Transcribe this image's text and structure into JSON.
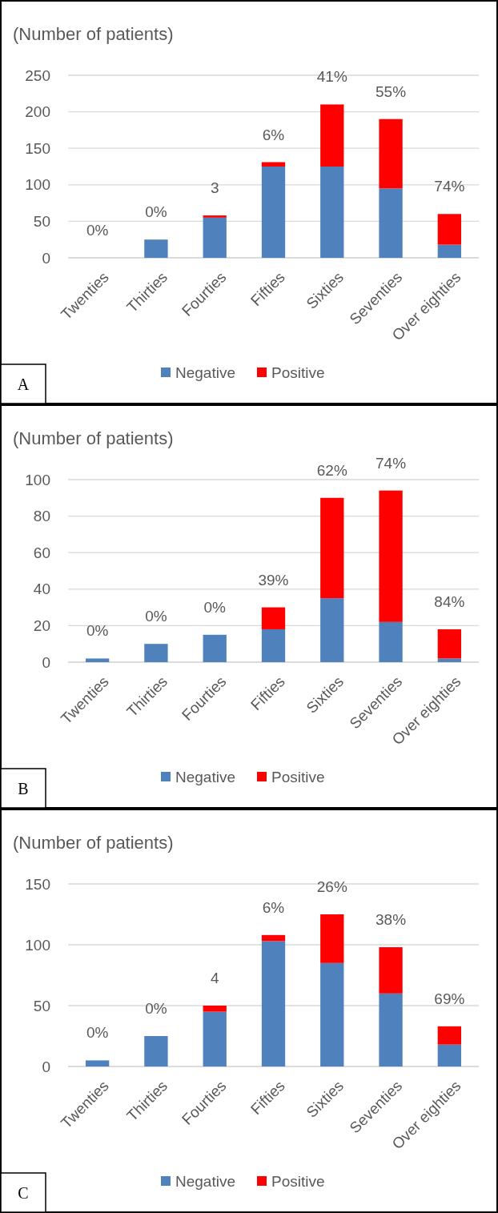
{
  "chart_data": [
    {
      "type": "bar",
      "stacked": true,
      "ylabel": "(Number of patients)",
      "categories": [
        "Twenties",
        "Thirties",
        "Fourties",
        "Fifties",
        "Sixties",
        "Seventies",
        "Over eighties"
      ],
      "ylim": [
        0,
        250
      ],
      "yticks": [
        0,
        50,
        100,
        150,
        200,
        250
      ],
      "grid": "y",
      "legend": "bottom",
      "annotations": [
        "A",
        {
          "text": "0%",
          "x": "Twenties",
          "y": 0
        },
        {
          "text": "0%",
          "x": "Thirties",
          "y": 25
        },
        {
          "text": "3",
          "x": "Fourties",
          "y": 58
        },
        {
          "text": "6%",
          "x": "Fifties",
          "y": 131
        },
        {
          "text": "41%",
          "x": "Sixties",
          "y": 210
        },
        {
          "text": "55%",
          "x": "Seventies",
          "y": 190
        },
        {
          "text": "74%",
          "x": "Over eighties",
          "y": 60
        }
      ],
      "series": [
        {
          "name": "Negative",
          "color": "#4f81bd",
          "values": [
            0,
            25,
            55,
            125,
            125,
            95,
            18
          ]
        },
        {
          "name": "Positive",
          "color": "#ff0000",
          "values": [
            0,
            0,
            3,
            6,
            85,
            95,
            42
          ]
        }
      ]
    },
    {
      "type": "bar",
      "stacked": true,
      "ylabel": "(Number of patients)",
      "categories": [
        "Twenties",
        "Thirties",
        "Fourties",
        "Fifties",
        "Sixties",
        "Seventies",
        "Over eighties"
      ],
      "ylim": [
        0,
        100
      ],
      "yticks": [
        0,
        20,
        40,
        60,
        80,
        100
      ],
      "grid": "y",
      "legend": "bottom",
      "annotations": [
        "B",
        {
          "text": "0%",
          "x": "Twenties",
          "y": 2
        },
        {
          "text": "0%",
          "x": "Thirties",
          "y": 10
        },
        {
          "text": "0%",
          "x": "Fourties",
          "y": 15
        },
        {
          "text": "39%",
          "x": "Fifties",
          "y": 30
        },
        {
          "text": "62%",
          "x": "Sixties",
          "y": 90
        },
        {
          "text": "74%",
          "x": "Seventies",
          "y": 94
        },
        {
          "text": "84%",
          "x": "Over eighties",
          "y": 18
        }
      ],
      "series": [
        {
          "name": "Negative",
          "color": "#4f81bd",
          "values": [
            2,
            10,
            15,
            18,
            35,
            22,
            2
          ]
        },
        {
          "name": "Positive",
          "color": "#ff0000",
          "values": [
            0,
            0,
            0,
            12,
            55,
            72,
            16
          ]
        }
      ]
    },
    {
      "type": "bar",
      "stacked": true,
      "ylabel": "(Number of patients)",
      "categories": [
        "Twenties",
        "Thirties",
        "Fourties",
        "Fifties",
        "Sixties",
        "Seventies",
        "Over eighties"
      ],
      "ylim": [
        0,
        150
      ],
      "yticks": [
        0,
        50,
        100,
        150
      ],
      "grid": "y",
      "legend": "bottom",
      "annotations": [
        "C",
        {
          "text": "0%",
          "x": "Twenties",
          "y": 5
        },
        {
          "text": "0%",
          "x": "Thirties",
          "y": 25
        },
        {
          "text": "4",
          "x": "Fourties",
          "y": 50
        },
        {
          "text": "6%",
          "x": "Fifties",
          "y": 108
        },
        {
          "text": "26%",
          "x": "Sixties",
          "y": 125
        },
        {
          "text": "38%",
          "x": "Seventies",
          "y": 98
        },
        {
          "text": "69%",
          "x": "Over eighties",
          "y": 33
        }
      ],
      "series": [
        {
          "name": "Negative",
          "color": "#4f81bd",
          "values": [
            5,
            25,
            45,
            103,
            85,
            60,
            18
          ]
        },
        {
          "name": "Positive",
          "color": "#ff0000",
          "values": [
            0,
            0,
            5,
            5,
            40,
            38,
            15
          ]
        }
      ]
    }
  ]
}
